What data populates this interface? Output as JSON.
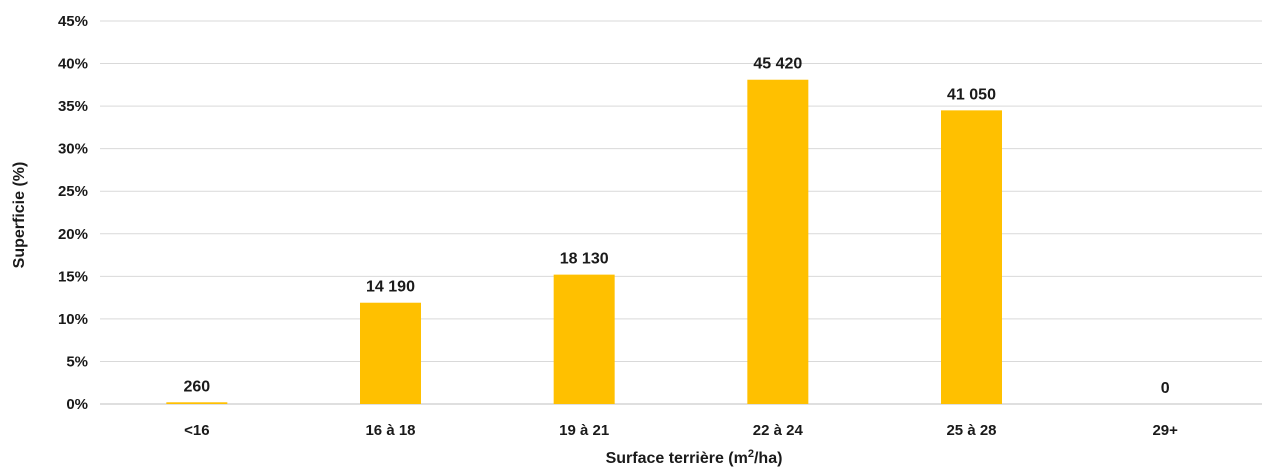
{
  "chart_data": {
    "type": "bar",
    "categories": [
      "<16",
      "16 à 18",
      "19 à 21",
      "22 à 24",
      "25 à 28",
      "29+"
    ],
    "values": [
      0.2,
      11.9,
      15.2,
      38.1,
      34.5,
      0
    ],
    "data_labels": [
      "260",
      "14 190",
      "18 130",
      "45 420",
      "41 050",
      "0"
    ],
    "y_ticks": [
      "0%",
      "5%",
      "10%",
      "15%",
      "20%",
      "25%",
      "30%",
      "35%",
      "40%",
      "45%"
    ],
    "ylim": [
      0,
      45
    ],
    "ylabel": "Superficie (%)",
    "xlabel_main": "Surface terrière (m",
    "xlabel_sup": "2",
    "xlabel_end": "/ha)",
    "grid": true,
    "bar_color": "#FFC000"
  }
}
